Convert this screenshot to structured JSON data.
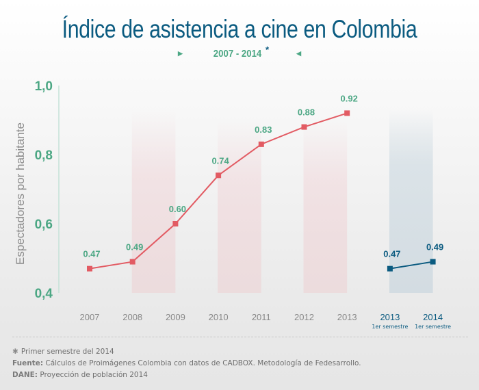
{
  "header": {
    "title": "Índice de asistencia a cine en Colombia",
    "subtitle_range": "2007 - 2014",
    "subtitle_mark": "*"
  },
  "chart_data": {
    "type": "line",
    "title": "Índice de asistencia a cine en Colombia",
    "subtitle": "2007 - 2014*",
    "xlabel": "",
    "ylabel": "Espectadores por habitante",
    "ylim": [
      0.4,
      1.0
    ],
    "y_ticks": [
      {
        "value": 0.4,
        "label": "0,4"
      },
      {
        "value": 0.6,
        "label": "0,6"
      },
      {
        "value": 0.8,
        "label": "0,8"
      },
      {
        "value": 1.0,
        "label": "1,0"
      }
    ],
    "grid": false,
    "categories": [
      "2007",
      "2008",
      "2009",
      "2010",
      "2011",
      "2012",
      "2013",
      "2013",
      "2014"
    ],
    "category_sublabels": [
      "",
      "",
      "",
      "",
      "",
      "",
      "",
      "1er semestre",
      "1er semestre"
    ],
    "series": [
      {
        "name": "Anual",
        "color": "#e25b63",
        "label_color": "#4ca784",
        "category_indices": [
          0,
          1,
          2,
          3,
          4,
          5,
          6
        ],
        "values": [
          0.47,
          0.49,
          0.6,
          0.74,
          0.83,
          0.88,
          0.92
        ],
        "labels": [
          "0.47",
          "0.49",
          "0.60",
          "0.74",
          "0.83",
          "0.88",
          "0.92"
        ]
      },
      {
        "name": "1er semestre",
        "color": "#0b5b80",
        "label_color": "#0b5b80",
        "category_indices": [
          7,
          8
        ],
        "values": [
          0.47,
          0.49
        ],
        "labels": [
          "0.47",
          "0.49"
        ]
      }
    ],
    "highlight_bands": [
      {
        "from_index": 1,
        "to_index": 2,
        "color": "#f1d9dc"
      },
      {
        "from_index": 3,
        "to_index": 4,
        "color": "#f1d9dc"
      },
      {
        "from_index": 5,
        "to_index": 6,
        "color": "#f1d9dc"
      },
      {
        "from_index": 7,
        "to_index": 8,
        "color": "#cfdbe2"
      }
    ]
  },
  "footer": {
    "note_mark": "✱",
    "note": "Primer semestre del 2014",
    "source_label": "Fuente:",
    "source_text": " Cálculos de Proimágenes Colombia con datos de CADBOX. Metodología de Fedesarrollo.",
    "dane_label": "DANE:",
    "dane_text": " Proyección de población 2014"
  }
}
